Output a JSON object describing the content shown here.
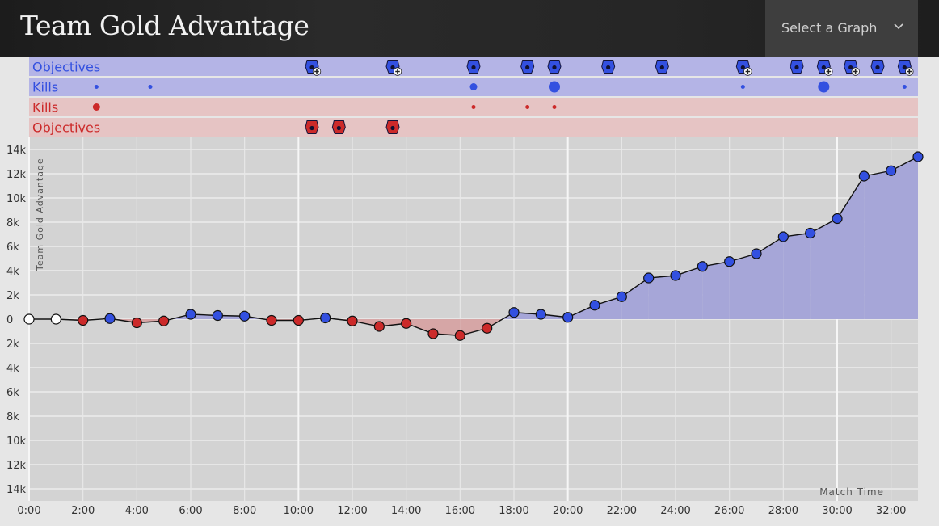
{
  "header": {
    "title": "Team Gold Advantage",
    "select_label": "Select a Graph",
    "chevron_icon": "chevron-down-icon"
  },
  "colors": {
    "blue": "#3350e0",
    "red": "#cc2a2a",
    "blue_band": "#b4b4e6",
    "red_band": "#e6c4c4",
    "blue_fill": "#a6a6d8",
    "red_fill": "#d6a6a6",
    "plot_bg": "#d3d3d3",
    "neutral_point": "#ffffff"
  },
  "tracks": [
    {
      "label": "Objectives",
      "team": "blue",
      "kind": "objectives",
      "events": [
        {
          "t": 10.5,
          "icon": "elder-dragon-icon",
          "bonus": true
        },
        {
          "t": 13.5,
          "icon": "infernal-dragon-icon",
          "bonus": true
        },
        {
          "t": 16.5,
          "icon": "tower-icon",
          "bonus": false
        },
        {
          "t": 18.5,
          "icon": "tower-icon",
          "bonus": false
        },
        {
          "t": 19.5,
          "icon": "ocean-dragon-icon",
          "bonus": false
        },
        {
          "t": 21.5,
          "icon": "baron-icon",
          "bonus": false
        },
        {
          "t": 23.5,
          "icon": "tower-icon",
          "bonus": false
        },
        {
          "t": 26.5,
          "icon": "rift-herald-icon",
          "bonus": true
        },
        {
          "t": 28.5,
          "icon": "tower-icon",
          "bonus": false
        },
        {
          "t": 29.5,
          "icon": "inhibitor-icon",
          "bonus": true
        },
        {
          "t": 30.5,
          "icon": "dragon-soul-icon",
          "bonus": true
        },
        {
          "t": 31.5,
          "icon": "tower-icon",
          "bonus": false
        },
        {
          "t": 32.5,
          "icon": "dragon-soul-icon",
          "bonus": true
        }
      ]
    },
    {
      "label": "Kills",
      "team": "blue",
      "kind": "kills",
      "events": [
        {
          "t": 2.5,
          "count": 1
        },
        {
          "t": 4.5,
          "count": 1
        },
        {
          "t": 16.5,
          "count": 2
        },
        {
          "t": 19.5,
          "count": 3
        },
        {
          "t": 26.5,
          "count": 1
        },
        {
          "t": 29.5,
          "count": 3
        },
        {
          "t": 32.5,
          "count": 1
        }
      ]
    },
    {
      "label": "Kills",
      "team": "red",
      "kind": "kills",
      "events": [
        {
          "t": 2.5,
          "count": 2
        },
        {
          "t": 16.5,
          "count": 1
        },
        {
          "t": 18.5,
          "count": 1
        },
        {
          "t": 19.5,
          "count": 1
        }
      ]
    },
    {
      "label": "Objectives",
      "team": "red",
      "kind": "objectives",
      "events": [
        {
          "t": 10.5,
          "icon": "tower-icon",
          "bonus": false
        },
        {
          "t": 11.5,
          "icon": "tower-icon",
          "bonus": false
        },
        {
          "t": 13.5,
          "icon": "tower-icon",
          "bonus": false
        }
      ]
    }
  ],
  "chart_data": {
    "type": "area",
    "title": "",
    "ylabel": "Team Gold Advantage",
    "xlabel": "Match Time",
    "x_unit": "minutes",
    "xlim": [
      0,
      33
    ],
    "ylim": [
      -15000,
      15000
    ],
    "grid": true,
    "x_ticks": [
      0,
      2,
      4,
      6,
      8,
      10,
      12,
      14,
      16,
      18,
      20,
      22,
      24,
      26,
      28,
      30,
      32
    ],
    "x_tick_labels": [
      "0:00",
      "2:00",
      "4:00",
      "6:00",
      "8:00",
      "10:00",
      "12:00",
      "14:00",
      "16:00",
      "18:00",
      "20:00",
      "22:00",
      "24:00",
      "26:00",
      "28:00",
      "30:00",
      "32:00"
    ],
    "y_ticks": [
      14000,
      12000,
      10000,
      8000,
      6000,
      4000,
      2000,
      0,
      -2000,
      -4000,
      -6000,
      -8000,
      -10000,
      -12000,
      -14000
    ],
    "y_tick_labels": [
      "14k",
      "12k",
      "10k",
      "8k",
      "6k",
      "4k",
      "2k",
      "0",
      "2k",
      "4k",
      "6k",
      "8k",
      "10k",
      "12k",
      "14k"
    ],
    "points": [
      {
        "x": 0,
        "y": 0
      },
      {
        "x": 1,
        "y": 0
      },
      {
        "x": 2,
        "y": -100
      },
      {
        "x": 3,
        "y": 50
      },
      {
        "x": 4,
        "y": -300
      },
      {
        "x": 5,
        "y": -150
      },
      {
        "x": 6,
        "y": 400
      },
      {
        "x": 7,
        "y": 300
      },
      {
        "x": 8,
        "y": 250
      },
      {
        "x": 9,
        "y": -100
      },
      {
        "x": 10,
        "y": -100
      },
      {
        "x": 11,
        "y": 100
      },
      {
        "x": 12,
        "y": -150
      },
      {
        "x": 13,
        "y": -600
      },
      {
        "x": 14,
        "y": -350
      },
      {
        "x": 15,
        "y": -1200
      },
      {
        "x": 16,
        "y": -1350
      },
      {
        "x": 17,
        "y": -750
      },
      {
        "x": 18,
        "y": 550
      },
      {
        "x": 19,
        "y": 400
      },
      {
        "x": 20,
        "y": 150
      },
      {
        "x": 21,
        "y": 1150
      },
      {
        "x": 22,
        "y": 1850
      },
      {
        "x": 23,
        "y": 3400
      },
      {
        "x": 24,
        "y": 3600
      },
      {
        "x": 25,
        "y": 4350
      },
      {
        "x": 26,
        "y": 4750
      },
      {
        "x": 27,
        "y": 5400
      },
      {
        "x": 28,
        "y": 6800
      },
      {
        "x": 29,
        "y": 7100
      },
      {
        "x": 30,
        "y": 8300
      },
      {
        "x": 31,
        "y": 11800
      },
      {
        "x": 32,
        "y": 12250
      },
      {
        "x": 33,
        "y": 13400
      }
    ]
  }
}
